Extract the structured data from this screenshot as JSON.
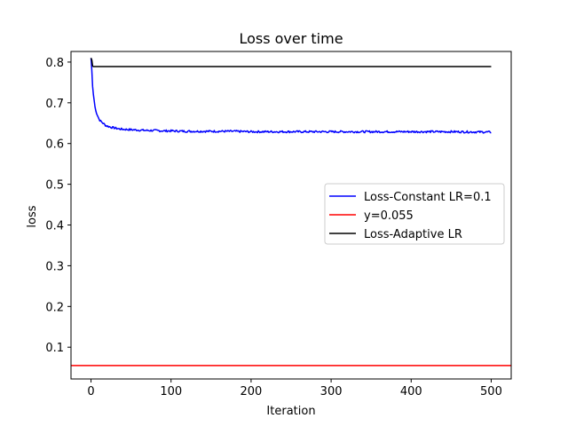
{
  "chart_data": {
    "type": "line",
    "title": "Loss over time",
    "xlabel": "Iteration",
    "ylabel": "loss",
    "xlim": [
      -25,
      525
    ],
    "ylim": [
      0.022,
      0.826
    ],
    "xticks": [
      0,
      100,
      200,
      300,
      400,
      500
    ],
    "yticks": [
      0.1,
      0.2,
      0.3,
      0.4,
      0.5,
      0.6,
      0.7,
      0.8
    ],
    "grid": false,
    "legend_position": "center-right",
    "series": [
      {
        "name": "Loss-Constant LR=0.1",
        "color": "#0000ff",
        "x": [
          0,
          1,
          2,
          3,
          4,
          5,
          6,
          8,
          10,
          12,
          15,
          18,
          20,
          25,
          30,
          35,
          40,
          50,
          60,
          70,
          80,
          90,
          100,
          120,
          140,
          160,
          180,
          200,
          250,
          300,
          350,
          400,
          450,
          500
        ],
        "y": [
          0.81,
          0.78,
          0.74,
          0.72,
          0.705,
          0.69,
          0.68,
          0.67,
          0.66,
          0.655,
          0.65,
          0.645,
          0.643,
          0.64,
          0.638,
          0.636,
          0.635,
          0.634,
          0.633,
          0.632,
          0.632,
          0.631,
          0.631,
          0.63,
          0.63,
          0.63,
          0.63,
          0.629,
          0.629,
          0.629,
          0.629,
          0.629,
          0.629,
          0.628
        ],
        "noise": 0.0025
      },
      {
        "name": "y=0.055",
        "color": "#ff0000",
        "type": "hline",
        "y": 0.055
      },
      {
        "name": "Loss-Adaptive LR",
        "color": "#000000",
        "x": [
          0,
          1,
          2,
          3,
          500
        ],
        "y": [
          0.81,
          0.805,
          0.79,
          0.789,
          0.789
        ]
      }
    ]
  }
}
